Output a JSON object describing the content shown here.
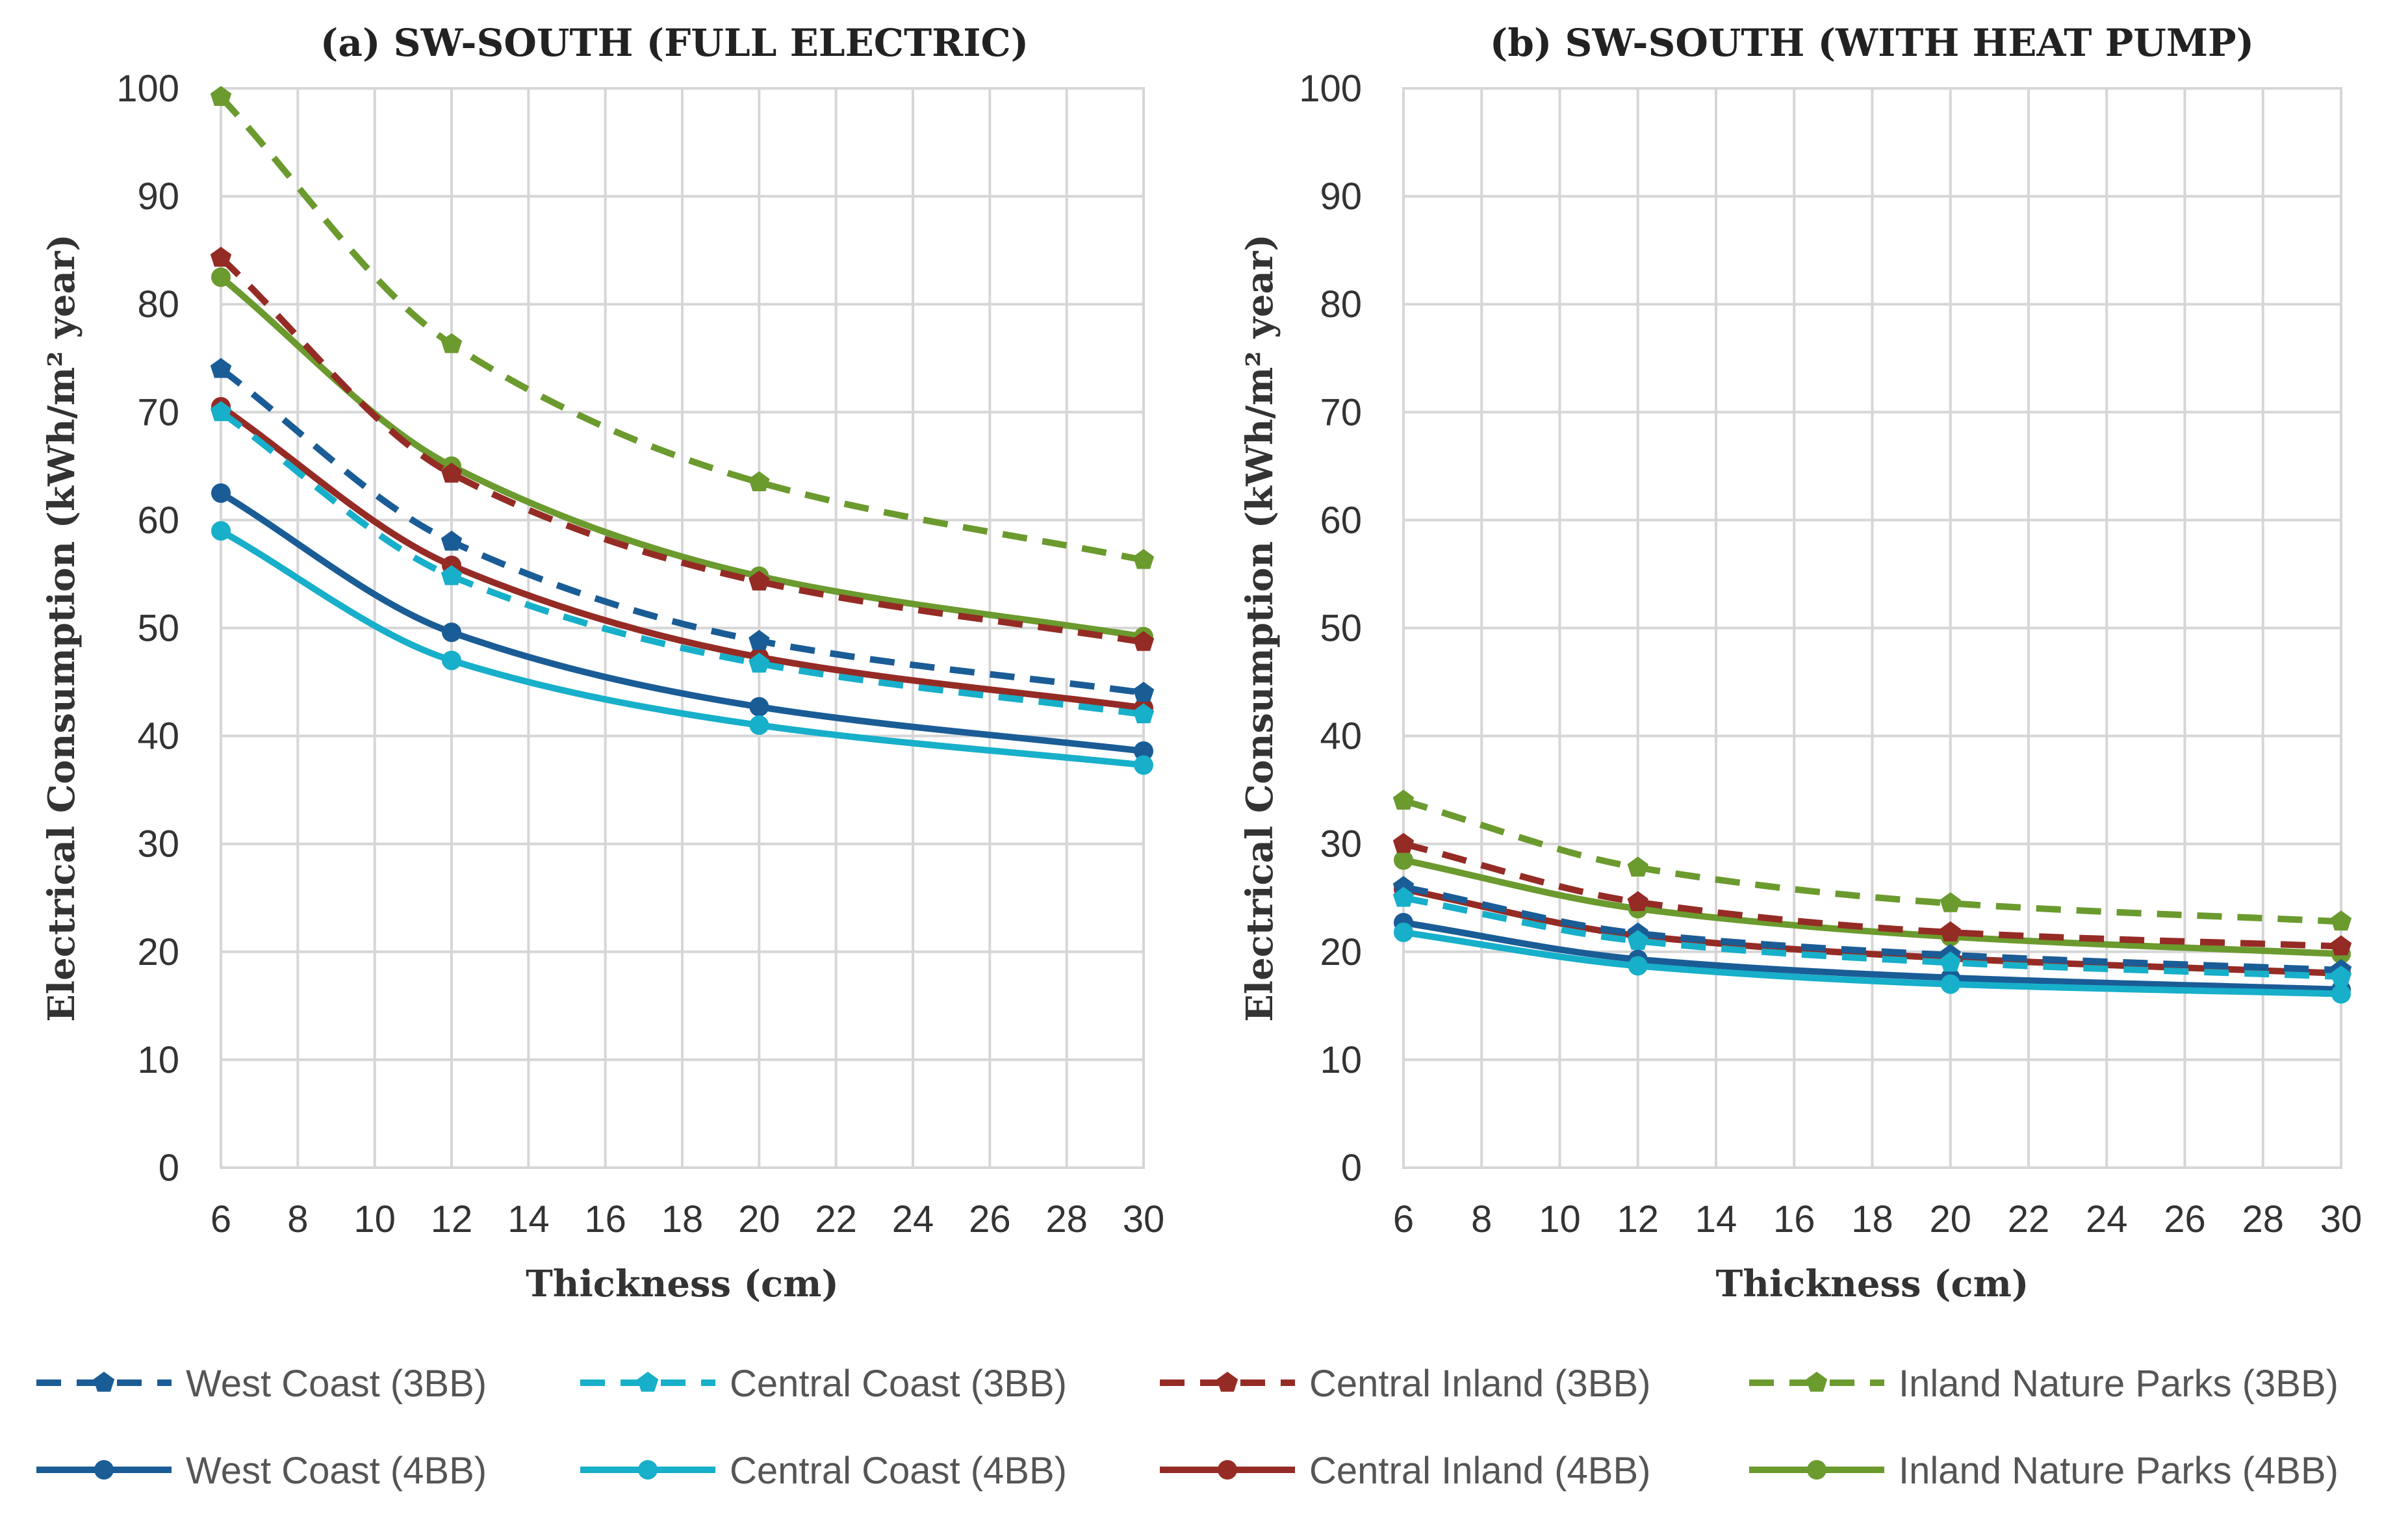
{
  "chart_data": [
    {
      "type": "line",
      "title": "(a) SW-SOUTH (FULL ELECTRIC)",
      "xlabel": "Thickness  (cm)",
      "ylabel": "Electrical Consumption  (kWh/m² year)",
      "xlim": [
        6,
        30
      ],
      "ylim": [
        0,
        100
      ],
      "xticks": [
        "6",
        "8",
        "10",
        "12",
        "14",
        "16",
        "18",
        "20",
        "22",
        "24",
        "26",
        "28",
        "30"
      ],
      "yticks": [
        "0",
        "10",
        "20",
        "30",
        "40",
        "50",
        "60",
        "70",
        "80",
        "90",
        "100"
      ],
      "x": [
        6,
        12,
        20,
        30
      ],
      "grid": true,
      "series": [
        {
          "name": "West Coast (3BB)",
          "color": "#1a5c96",
          "dash": true,
          "values": [
            74,
            58,
            48.8,
            44
          ]
        },
        {
          "name": "Central Coast (3BB)",
          "color": "#17afc9",
          "dash": true,
          "values": [
            70,
            54.8,
            46.7,
            42
          ]
        },
        {
          "name": "Central Inland (3BB)",
          "color": "#952b25",
          "dash": true,
          "values": [
            84.3,
            64.3,
            54.3,
            48.7
          ]
        },
        {
          "name": "Inland Nature Parks (3BB)",
          "color": "#6b9a2e",
          "dash": true,
          "values": [
            99.2,
            76.3,
            63.5,
            56.3
          ]
        },
        {
          "name": "West Coast (4BB)",
          "color": "#1a5c96",
          "dash": false,
          "values": [
            62.5,
            49.6,
            42.7,
            38.6
          ]
        },
        {
          "name": "Central Coast (4BB)",
          "color": "#17afc9",
          "dash": false,
          "values": [
            59,
            47,
            41,
            37.3
          ]
        },
        {
          "name": "Central Inland (4BB)",
          "color": "#952b25",
          "dash": false,
          "values": [
            70.5,
            55.8,
            47.3,
            42.6
          ]
        },
        {
          "name": "Inland Nature Parks (4BB)",
          "color": "#6b9a2e",
          "dash": false,
          "values": [
            82.5,
            65,
            54.8,
            49.2
          ]
        }
      ]
    },
    {
      "type": "line",
      "title": "(b) SW-SOUTH (WITH HEAT PUMP)",
      "xlabel": "Thickness  (cm)",
      "ylabel": "Electrical Consumption  (kWh/m² year)",
      "xlim": [
        6,
        30
      ],
      "ylim": [
        0,
        100
      ],
      "xticks": [
        "6",
        "8",
        "10",
        "12",
        "14",
        "16",
        "18",
        "20",
        "22",
        "24",
        "26",
        "28",
        "30"
      ],
      "yticks": [
        "0",
        "10",
        "20",
        "30",
        "40",
        "50",
        "60",
        "70",
        "80",
        "90",
        "100"
      ],
      "x": [
        6,
        12,
        20,
        30
      ],
      "grid": true,
      "series": [
        {
          "name": "West Coast (3BB)",
          "color": "#1a5c96",
          "dash": true,
          "values": [
            26,
            21.7,
            19.7,
            18.3
          ]
        },
        {
          "name": "Central Coast (3BB)",
          "color": "#17afc9",
          "dash": true,
          "values": [
            25,
            21,
            19,
            17.7
          ]
        },
        {
          "name": "Central Inland (3BB)",
          "color": "#952b25",
          "dash": true,
          "values": [
            30,
            24.6,
            21.8,
            20.5
          ]
        },
        {
          "name": "Inland Nature Parks (3BB)",
          "color": "#6b9a2e",
          "dash": true,
          "values": [
            34,
            27.8,
            24.5,
            22.8
          ]
        },
        {
          "name": "West Coast (4BB)",
          "color": "#1a5c96",
          "dash": false,
          "values": [
            22.7,
            19.3,
            17.6,
            16.5
          ]
        },
        {
          "name": "Central Coast (4BB)",
          "color": "#17afc9",
          "dash": false,
          "values": [
            21.8,
            18.7,
            17,
            16.1
          ]
        },
        {
          "name": "Central Inland (4BB)",
          "color": "#952b25",
          "dash": false,
          "values": [
            25.8,
            21.5,
            19.4,
            18
          ]
        },
        {
          "name": "Inland Nature Parks (4BB)",
          "color": "#6b9a2e",
          "dash": false,
          "values": [
            28.5,
            24,
            21.4,
            19.8
          ]
        }
      ]
    }
  ],
  "legend": {
    "placement": "bottom",
    "items": [
      {
        "label": "West Coast (3BB)",
        "color": "#1a5c96",
        "dash": true
      },
      {
        "label": "Central Coast (3BB)",
        "color": "#17afc9",
        "dash": true
      },
      {
        "label": "Central Inland (3BB)",
        "color": "#952b25",
        "dash": true
      },
      {
        "label": "Inland Nature Parks (3BB)",
        "color": "#6b9a2e",
        "dash": true
      },
      {
        "label": "West Coast (4BB)",
        "color": "#1a5c96",
        "dash": false
      },
      {
        "label": "Central Coast (4BB)",
        "color": "#17afc9",
        "dash": false
      },
      {
        "label": "Central Inland (4BB)",
        "color": "#952b25",
        "dash": false
      },
      {
        "label": "Inland Nature Parks (4BB)",
        "color": "#6b9a2e",
        "dash": false
      }
    ]
  }
}
